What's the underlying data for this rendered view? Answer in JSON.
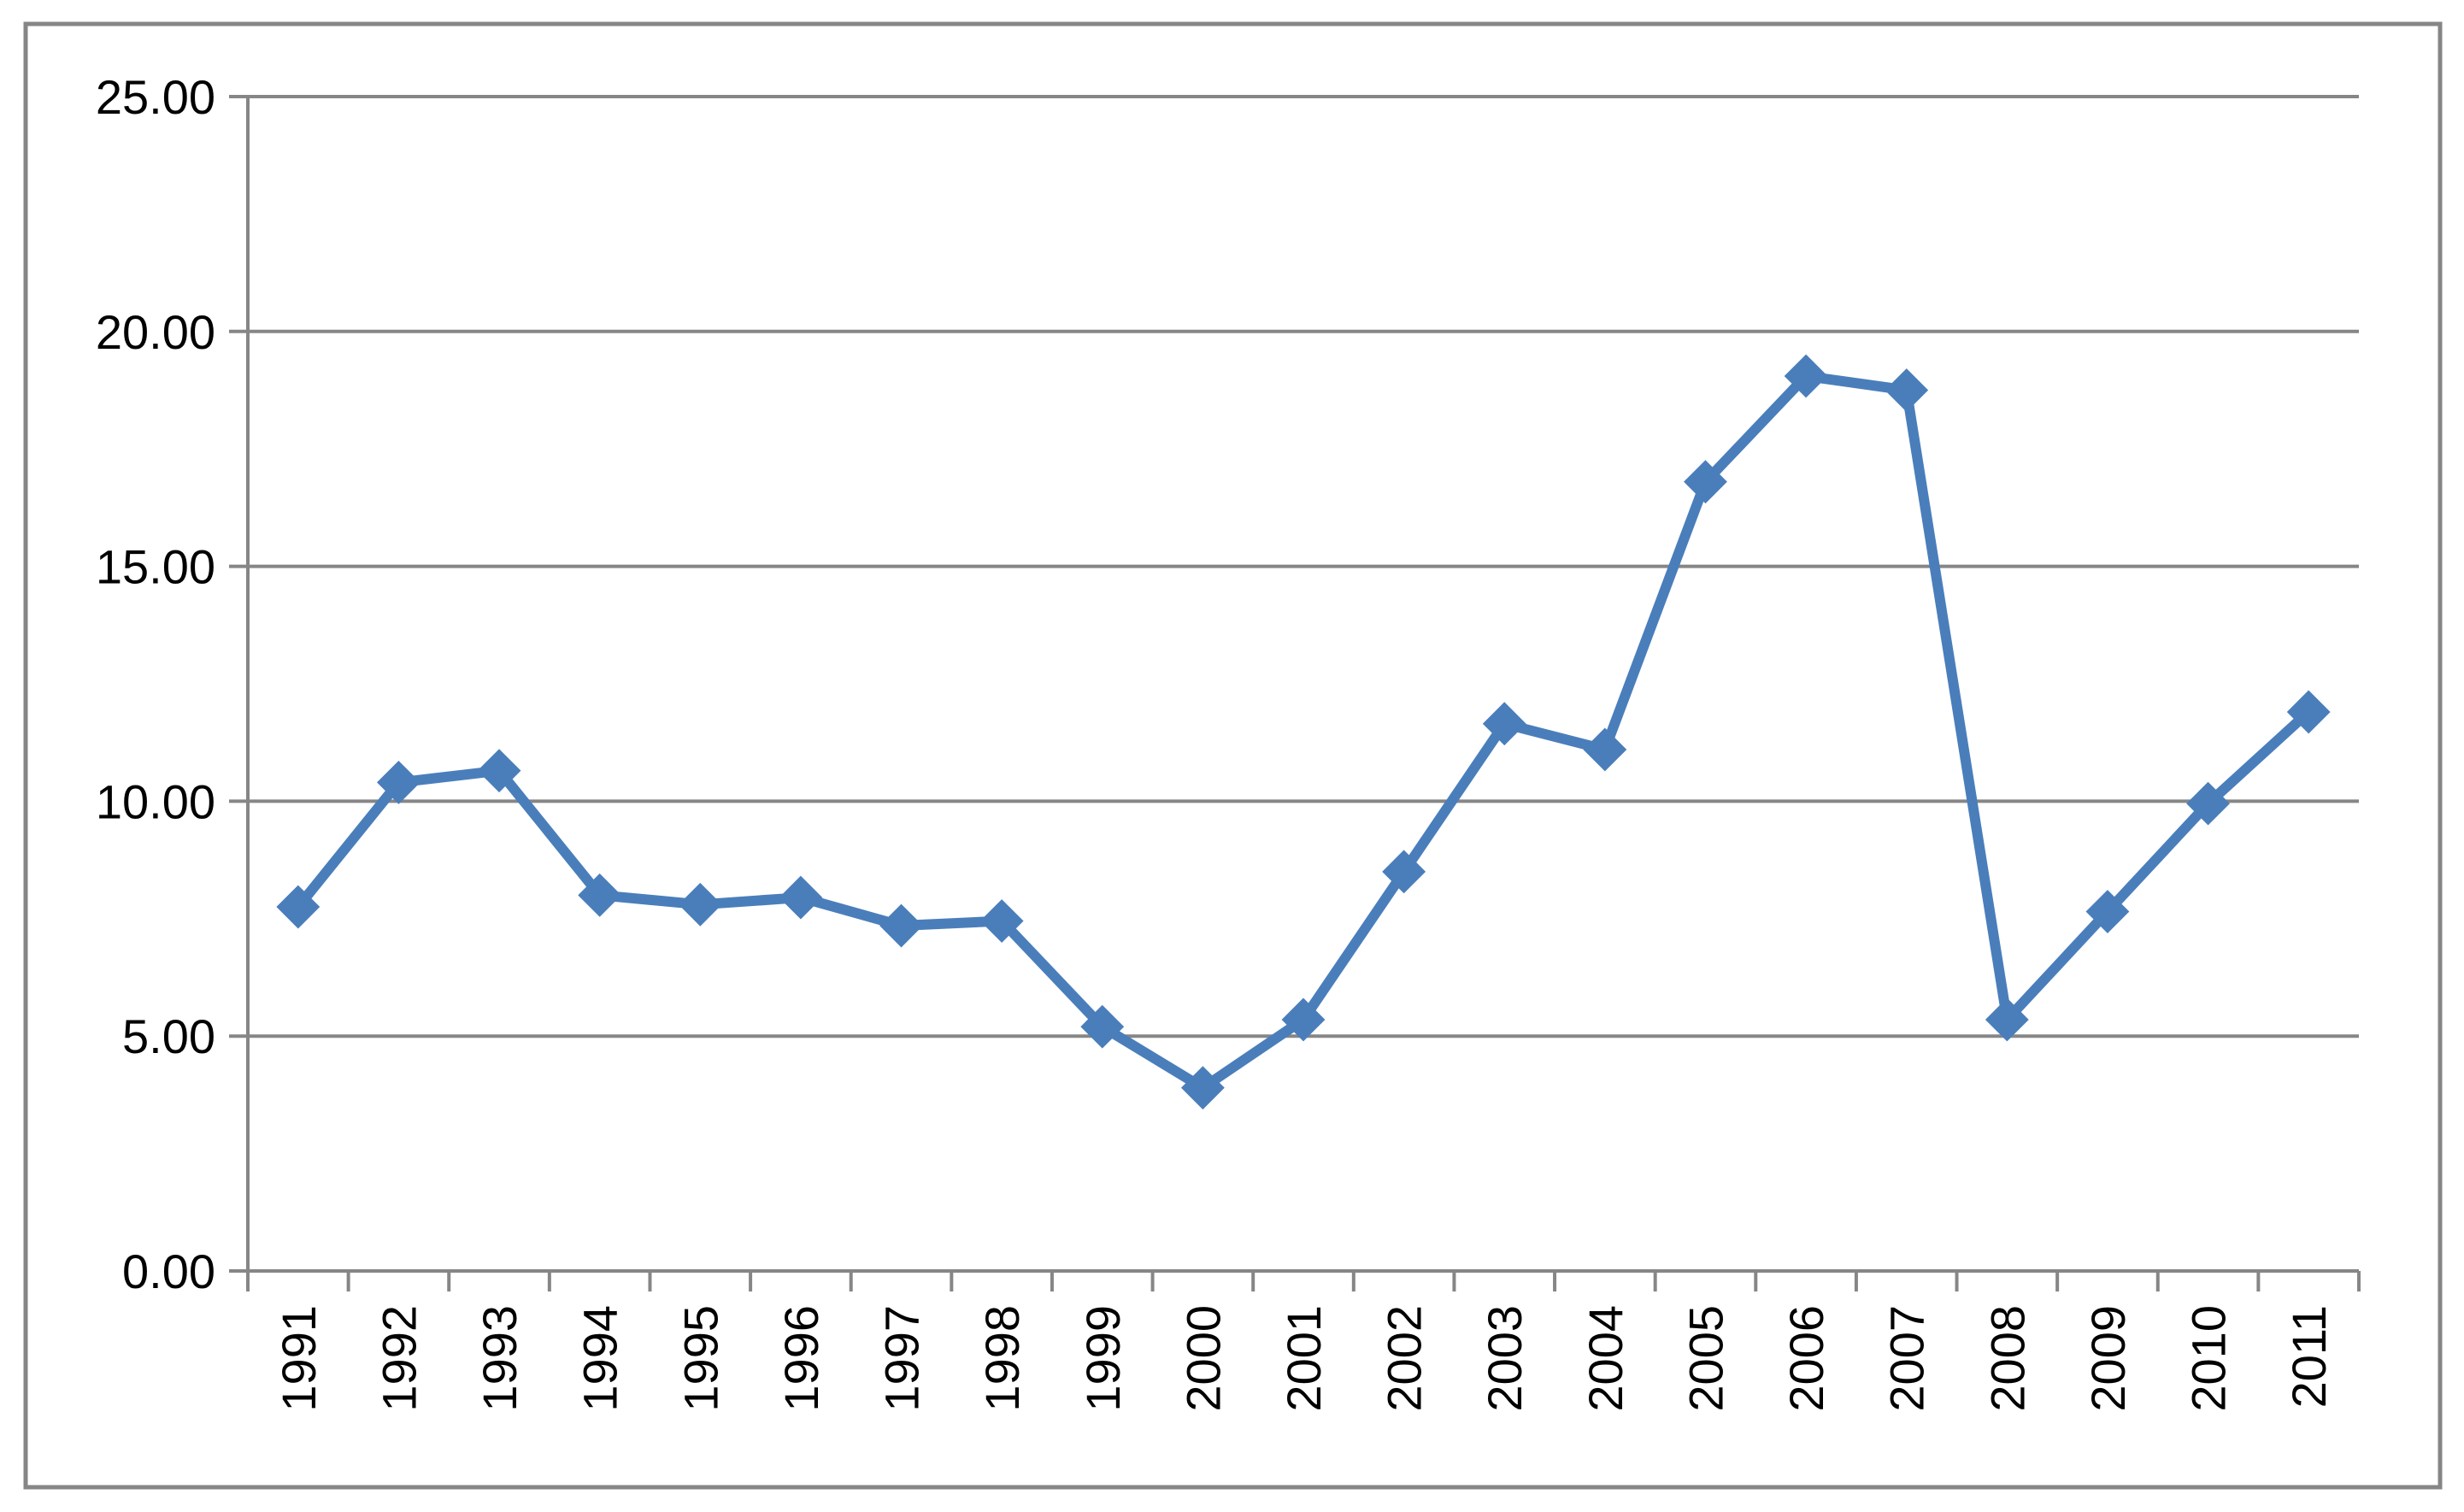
{
  "chart_data": {
    "type": "line",
    "title": "",
    "xlabel": "",
    "ylabel": "",
    "categories": [
      "1991",
      "1992",
      "1993",
      "1994",
      "1995",
      "1996",
      "1997",
      "1998",
      "1999",
      "2000",
      "2001",
      "2002",
      "2003",
      "2004",
      "2005",
      "2006",
      "2007",
      "2008",
      "2009",
      "2010",
      "2011"
    ],
    "series": [
      {
        "values": [
          7.75,
          10.4,
          10.65,
          8.0,
          7.8,
          7.95,
          7.35,
          7.45,
          5.2,
          3.9,
          5.35,
          8.5,
          11.65,
          11.1,
          16.8,
          19.05,
          18.75,
          5.35,
          7.65,
          9.95,
          11.9
        ]
      }
    ],
    "ylim": [
      0,
      25
    ],
    "yticks": [
      "0.00",
      "5.00",
      "10.00",
      "15.00",
      "20.00",
      "25.00"
    ],
    "grid": true,
    "legend": "none",
    "colors": {
      "series": "#4a7ebb",
      "grid": "#868686",
      "frame": "#868686"
    }
  }
}
